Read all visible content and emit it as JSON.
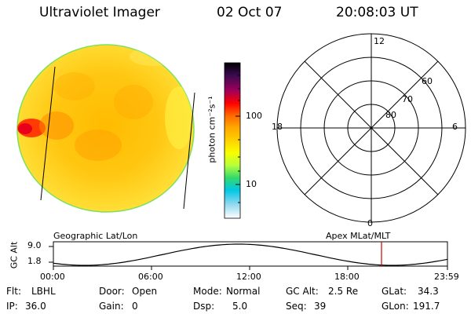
{
  "header": {
    "title": "Ultraviolet Imager",
    "date": "02 Oct 07",
    "time": "20:08:03 UT"
  },
  "colorbar": {
    "unit_label": "photon cm⁻²s⁻¹",
    "ticks": [
      "100",
      "10"
    ],
    "colors": [
      "#000000",
      "#3a0a50",
      "#a0005a",
      "#ff0000",
      "#ff6a00",
      "#ffaa00",
      "#ffd200",
      "#f7ff00",
      "#b6ff3c",
      "#33d96b",
      "#00c8e6",
      "#8fd8f0",
      "#ffffff"
    ]
  },
  "polar_plot": {
    "mlt_labels": [
      "12",
      "18",
      "6",
      "0"
    ],
    "mlat_labels": [
      "60",
      "70",
      "80"
    ]
  },
  "altitude_panel": {
    "left_caption": "Geographic Lat/Lon",
    "right_caption": "Apex MLat/MLT",
    "axis_label": "GC Alt",
    "y_ticks": [
      "9.0",
      "1.8"
    ],
    "x_ticks": [
      "00:00",
      "06:00",
      "12:00",
      "18:00",
      "23:59"
    ],
    "curve_color": "#000000",
    "marker_color": "#cc0000"
  },
  "info": {
    "flt_label": "Flt:",
    "flt_value": "LBHL",
    "ip_label": "IP:",
    "ip_value": "36.0",
    "door_label": "Door:",
    "door_value": "Open",
    "gain_label": "Gain:",
    "gain_value": "0",
    "mode_label": "Mode:",
    "mode_value": "Normal",
    "dsp_label": "Dsp:",
    "dsp_value": "5.0",
    "gcalt_label": "GC Alt:",
    "gcalt_value": "2.5 Re",
    "seq_label": "Seq:",
    "seq_value": "39",
    "glat_label": "GLat:",
    "glat_value": "34.3",
    "glon_label": "GLon:",
    "glon_value": "191.7"
  }
}
